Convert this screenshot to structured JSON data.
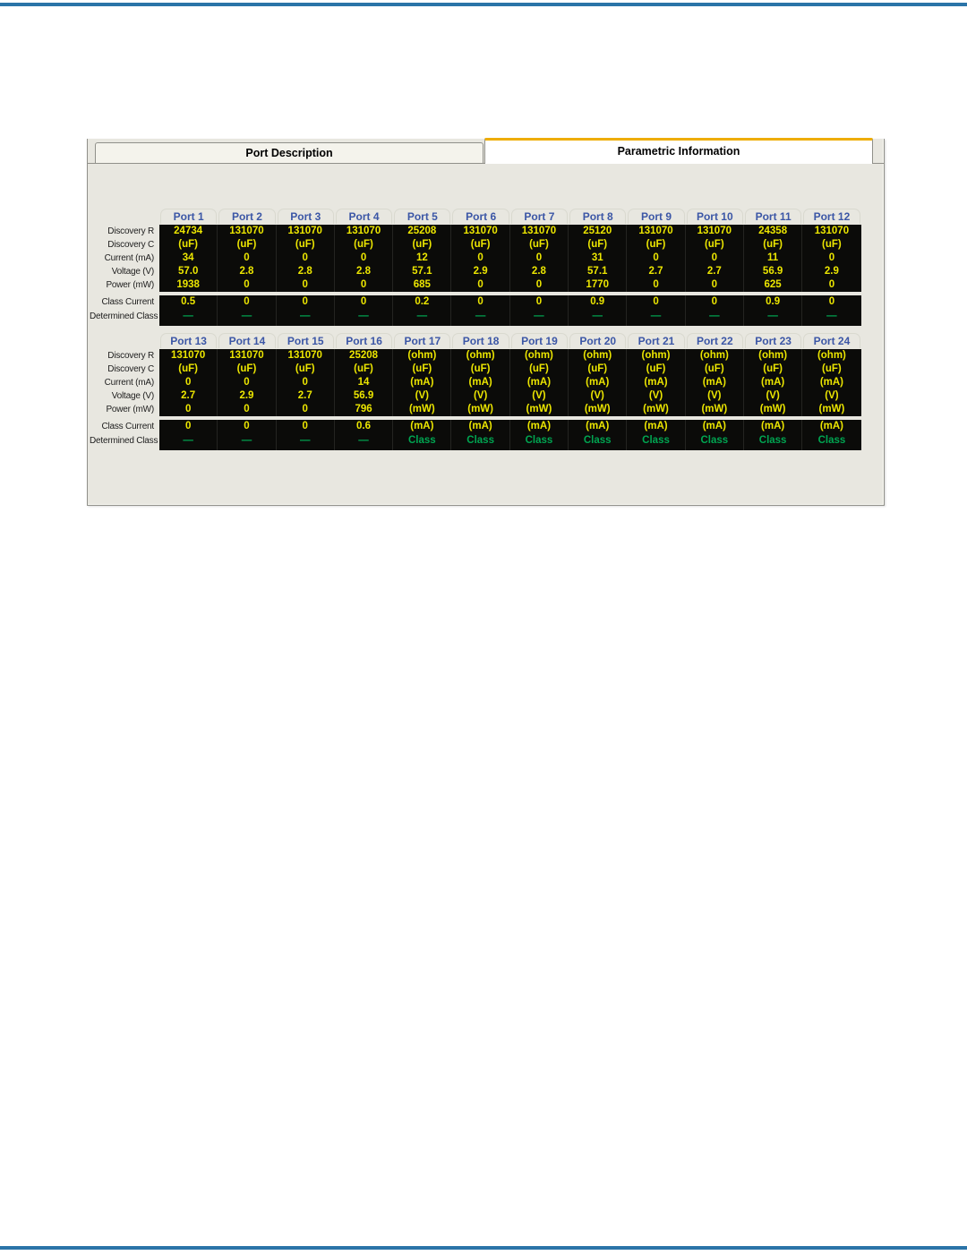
{
  "page": {
    "rule_color": "#2b74a8",
    "panel_bg": "#e8e7e0",
    "table_bg": "#0b0b09",
    "value_yellow": "#ece600",
    "class_green": "#00a551",
    "port_header_blue": "#3b56a6",
    "active_tab_accent": "#eead00"
  },
  "tabs": [
    {
      "label": "Port Description",
      "active": false
    },
    {
      "label": "Parametric Information",
      "active": true
    }
  ],
  "row_labels": {
    "main": [
      "Discovery R",
      "Discovery C",
      "Current (mA)",
      "Voltage (V)",
      "Power (mW)"
    ],
    "class": [
      "Class Current",
      "Determined Class"
    ]
  },
  "tables": [
    {
      "ports": [
        "Port 1",
        "Port 2",
        "Port 3",
        "Port 4",
        "Port 5",
        "Port 6",
        "Port 7",
        "Port 8",
        "Port 9",
        "Port 10",
        "Port 11",
        "Port 12"
      ],
      "rows": {
        "discovery_r": [
          "24734",
          "131070",
          "131070",
          "131070",
          "25208",
          "131070",
          "131070",
          "25120",
          "131070",
          "131070",
          "24358",
          "131070"
        ],
        "discovery_c": [
          "(uF)",
          "(uF)",
          "(uF)",
          "(uF)",
          "(uF)",
          "(uF)",
          "(uF)",
          "(uF)",
          "(uF)",
          "(uF)",
          "(uF)",
          "(uF)"
        ],
        "current_ma": [
          "34",
          "0",
          "0",
          "0",
          "12",
          "0",
          "0",
          "31",
          "0",
          "0",
          "11",
          "0"
        ],
        "voltage_v": [
          "57.0",
          "2.8",
          "2.8",
          "2.8",
          "57.1",
          "2.9",
          "2.8",
          "57.1",
          "2.7",
          "2.7",
          "56.9",
          "2.9"
        ],
        "power_mw": [
          "1938",
          "0",
          "0",
          "0",
          "685",
          "0",
          "0",
          "1770",
          "0",
          "0",
          "625",
          "0"
        ],
        "class_current": [
          "0.5",
          "0",
          "0",
          "0",
          "0.2",
          "0",
          "0",
          "0.9",
          "0",
          "0",
          "0.9",
          "0"
        ],
        "determined_class": [
          "—",
          "—",
          "—",
          "—",
          "—",
          "—",
          "—",
          "—",
          "—",
          "—",
          "—",
          "—"
        ]
      }
    },
    {
      "ports": [
        "Port 13",
        "Port 14",
        "Port 15",
        "Port 16",
        "Port 17",
        "Port 18",
        "Port 19",
        "Port 20",
        "Port 21",
        "Port 22",
        "Port 23",
        "Port 24"
      ],
      "rows": {
        "discovery_r": [
          "131070",
          "131070",
          "131070",
          "25208",
          "(ohm)",
          "(ohm)",
          "(ohm)",
          "(ohm)",
          "(ohm)",
          "(ohm)",
          "(ohm)",
          "(ohm)"
        ],
        "discovery_c": [
          "(uF)",
          "(uF)",
          "(uF)",
          "(uF)",
          "(uF)",
          "(uF)",
          "(uF)",
          "(uF)",
          "(uF)",
          "(uF)",
          "(uF)",
          "(uF)"
        ],
        "current_ma": [
          "0",
          "0",
          "0",
          "14",
          "(mA)",
          "(mA)",
          "(mA)",
          "(mA)",
          "(mA)",
          "(mA)",
          "(mA)",
          "(mA)"
        ],
        "voltage_v": [
          "2.7",
          "2.9",
          "2.7",
          "56.9",
          "(V)",
          "(V)",
          "(V)",
          "(V)",
          "(V)",
          "(V)",
          "(V)",
          "(V)"
        ],
        "power_mw": [
          "0",
          "0",
          "0",
          "796",
          "(mW)",
          "(mW)",
          "(mW)",
          "(mW)",
          "(mW)",
          "(mW)",
          "(mW)",
          "(mW)"
        ],
        "class_current": [
          "0",
          "0",
          "0",
          "0.6",
          "(mA)",
          "(mA)",
          "(mA)",
          "(mA)",
          "(mA)",
          "(mA)",
          "(mA)",
          "(mA)"
        ],
        "determined_class": [
          "—",
          "—",
          "—",
          "—",
          "Class",
          "Class",
          "Class",
          "Class",
          "Class",
          "Class",
          "Class",
          "Class"
        ]
      }
    }
  ]
}
